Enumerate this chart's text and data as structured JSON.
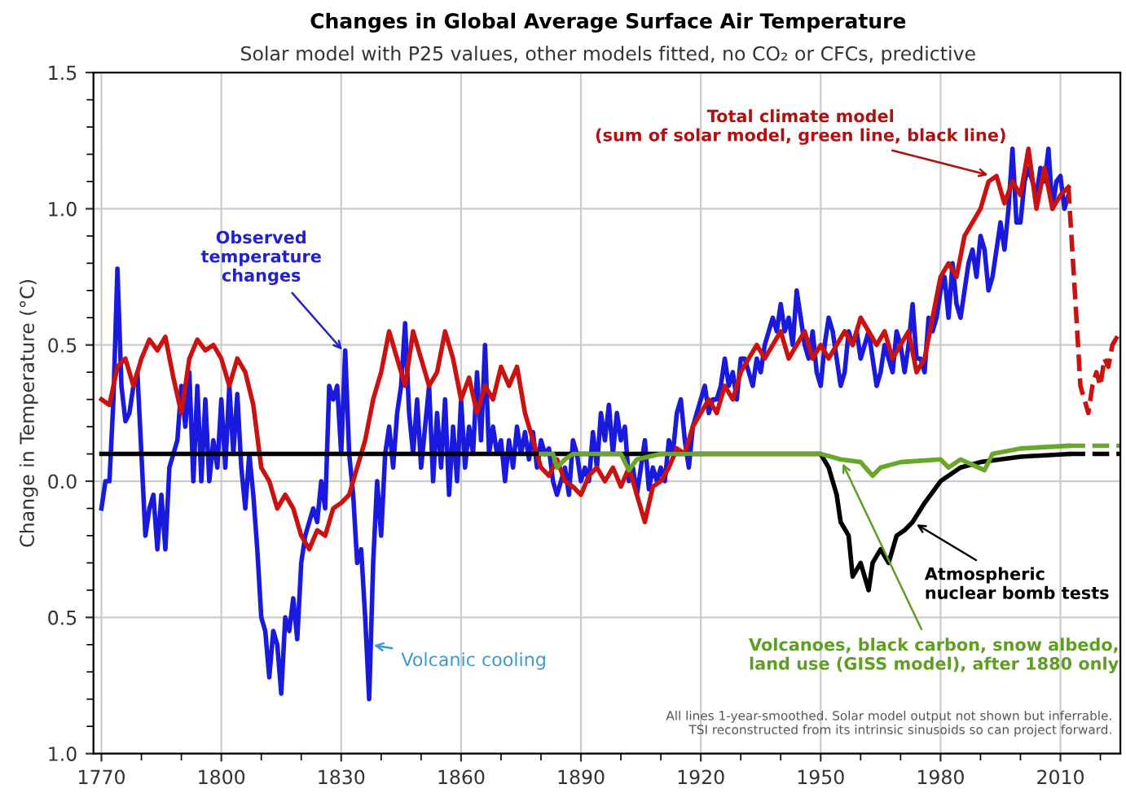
{
  "chart_data": {
    "type": "line",
    "title": "Changes in Global Average Surface Air Temperature",
    "subtitle": "Solar model with P25 values, other models fitted, no CO₂ or CFCs, predictive",
    "ylabel": "Change in Temperature (°C)",
    "xlim": [
      1768,
      2025
    ],
    "ylim": [
      -1.0,
      1.5
    ],
    "xticks": [
      1770,
      {
        "value": 1780,
        "label": null
      },
      {
        "value": 1790,
        "label": null
      },
      1800,
      {
        "value": 1810,
        "label": null
      },
      {
        "value": 1820,
        "label": null
      },
      1830,
      {
        "value": 1840,
        "label": null
      },
      {
        "value": 1850,
        "label": null
      },
      1860,
      {
        "value": 1870,
        "label": null
      },
      {
        "value": 1880,
        "label": null
      },
      1890,
      {
        "value": 1900,
        "label": null
      },
      {
        "value": 1910,
        "label": null
      },
      1920,
      {
        "value": 1930,
        "label": null
      },
      {
        "value": 1940,
        "label": null
      },
      1950,
      {
        "value": 1960,
        "label": null
      },
      {
        "value": 1970,
        "label": null
      },
      1980,
      {
        "value": 1990,
        "label": null
      },
      {
        "value": 2000,
        "label": null
      },
      2010,
      {
        "value": 2020,
        "label": null
      }
    ],
    "yticks": [
      1.5,
      {
        "value": 1.0,
        "label": "1.0"
      },
      0.5,
      {
        "value": 0.0,
        "label": "0.0"
      },
      {
        "value": -0.5,
        "label": "0.5"
      },
      {
        "value": -1.0,
        "label": "1.0"
      },
      {
        "value": 1.4,
        "label": null
      },
      {
        "value": 1.3,
        "label": null
      },
      {
        "value": 1.2,
        "label": null
      },
      {
        "value": 1.1,
        "label": null
      },
      {
        "value": 0.9,
        "label": null
      },
      {
        "value": 0.8,
        "label": null
      },
      {
        "value": 0.7,
        "label": null
      },
      {
        "value": 0.6,
        "label": null
      },
      {
        "value": 0.4,
        "label": null
      },
      {
        "value": 0.3,
        "label": null
      },
      {
        "value": 0.2,
        "label": null
      },
      {
        "value": 0.1,
        "label": null
      },
      {
        "value": -0.1,
        "label": null
      },
      {
        "value": -0.2,
        "label": null
      },
      {
        "value": -0.3,
        "label": null
      },
      {
        "value": -0.4,
        "label": null
      },
      {
        "value": -0.6,
        "label": null
      },
      {
        "value": -0.7,
        "label": null
      },
      {
        "value": -0.8,
        "label": null
      },
      {
        "value": -0.9,
        "label": null
      }
    ],
    "grid": true,
    "marker": "none",
    "series": [
      {
        "color": "#1a1adf",
        "line_style": "solid",
        "x": [
          1770,
          1771,
          1772,
          1773,
          1774,
          1775,
          1776,
          1777,
          1778,
          1779,
          1780,
          1781,
          1782,
          1783,
          1784,
          1785,
          1786,
          1787,
          1788,
          1789,
          1790,
          1791,
          1792,
          1793,
          1794,
          1795,
          1796,
          1797,
          1798,
          1799,
          1800,
          1801,
          1802,
          1803,
          1804,
          1805,
          1806,
          1807,
          1808,
          1809,
          1810,
          1811,
          1812,
          1813,
          1814,
          1815,
          1816,
          1817,
          1818,
          1819,
          1820,
          1821,
          1822,
          1823,
          1824,
          1825,
          1826,
          1827,
          1828,
          1829,
          1830,
          1831,
          1832,
          1833,
          1834,
          1835,
          1836,
          1837,
          1838,
          1839,
          1840,
          1841,
          1842,
          1843,
          1844,
          1845,
          1846,
          1847,
          1848,
          1849,
          1850,
          1851,
          1852,
          1853,
          1854,
          1855,
          1856,
          1857,
          1858,
          1859,
          1860,
          1861,
          1862,
          1863,
          1864,
          1865,
          1866,
          1867,
          1868,
          1869,
          1870,
          1871,
          1872,
          1873,
          1874,
          1875,
          1876,
          1877,
          1878,
          1879,
          1880,
          1881,
          1882,
          1883,
          1884,
          1885,
          1886,
          1887,
          1888,
          1889,
          1890,
          1891,
          1892,
          1893,
          1894,
          1895,
          1896,
          1897,
          1898,
          1899,
          1900,
          1901,
          1902,
          1903,
          1904,
          1905,
          1906,
          1907,
          1908,
          1909,
          1910,
          1911,
          1912,
          1913,
          1914,
          1915,
          1916,
          1917,
          1918,
          1919,
          1920,
          1921,
          1922,
          1923,
          1924,
          1925,
          1926,
          1927,
          1928,
          1929,
          1930,
          1931,
          1932,
          1933,
          1934,
          1935,
          1936,
          1937,
          1938,
          1939,
          1940,
          1941,
          1942,
          1943,
          1944,
          1945,
          1946,
          1947,
          1948,
          1949,
          1950,
          1951,
          1952,
          1953,
          1954,
          1955,
          1956,
          1957,
          1958,
          1959,
          1960,
          1961,
          1962,
          1963,
          1964,
          1965,
          1966,
          1967,
          1968,
          1969,
          1970,
          1971,
          1972,
          1973,
          1974,
          1975,
          1976,
          1977,
          1978,
          1979,
          1980,
          1981,
          1982,
          1983,
          1984,
          1985,
          1986,
          1987,
          1988,
          1989,
          1990,
          1991,
          1992,
          1993,
          1994,
          1995,
          1996,
          1997,
          1998,
          1999,
          2000,
          2001,
          2002,
          2003,
          2004,
          2005,
          2006,
          2007,
          2008,
          2009,
          2010,
          2011,
          2012
        ],
        "values": [
          -0.1,
          0.0,
          0.0,
          0.3,
          0.78,
          0.35,
          0.22,
          0.25,
          0.35,
          0.4,
          0.1,
          -0.2,
          -0.1,
          -0.05,
          -0.25,
          -0.05,
          -0.25,
          0.05,
          0.1,
          0.15,
          0.35,
          0.2,
          0.4,
          0.0,
          0.35,
          0.0,
          0.3,
          0.0,
          0.15,
          0.05,
          0.3,
          0.05,
          0.35,
          0.1,
          0.32,
          0.05,
          -0.1,
          0.1,
          -0.05,
          -0.25,
          -0.5,
          -0.55,
          -0.72,
          -0.55,
          -0.6,
          -0.78,
          -0.5,
          -0.55,
          -0.43,
          -0.58,
          -0.3,
          -0.2,
          -0.15,
          -0.1,
          -0.15,
          0.0,
          -0.1,
          0.35,
          0.3,
          0.35,
          0.1,
          0.48,
          0.1,
          -0.05,
          -0.3,
          -0.25,
          -0.5,
          -0.8,
          -0.3,
          0.0,
          -0.2,
          0.1,
          0.2,
          0.05,
          0.25,
          0.35,
          0.58,
          0.25,
          0.1,
          0.3,
          0.05,
          0.2,
          0.35,
          0.0,
          0.25,
          0.05,
          0.3,
          -0.05,
          0.2,
          0.0,
          0.3,
          0.05,
          0.2,
          0.1,
          0.4,
          0.15,
          0.5,
          0.1,
          0.2,
          0.1,
          0.15,
          0.0,
          0.15,
          0.05,
          0.2,
          0.1,
          0.18,
          0.08,
          0.18,
          0.05,
          0.15,
          0.1,
          0.12,
          0.0,
          -0.05,
          0.0,
          0.05,
          -0.05,
          0.15,
          0.1,
          0.0,
          0.05,
          0.0,
          0.18,
          0.05,
          0.25,
          0.15,
          0.28,
          0.1,
          0.25,
          0.15,
          0.2,
          0.0,
          0.05,
          -0.05,
          0.05,
          0.15,
          -0.03,
          0.05,
          0.0,
          0.05,
          0.0,
          0.15,
          0.1,
          0.25,
          0.3,
          0.15,
          0.05,
          0.2,
          0.25,
          0.3,
          0.35,
          0.25,
          0.3,
          0.3,
          0.35,
          0.45,
          0.35,
          0.4,
          0.3,
          0.45,
          0.45,
          0.4,
          0.35,
          0.45,
          0.4,
          0.5,
          0.55,
          0.6,
          0.55,
          0.65,
          0.55,
          0.6,
          0.5,
          0.7,
          0.6,
          0.5,
          0.45,
          0.55,
          0.4,
          0.35,
          0.5,
          0.6,
          0.55,
          0.45,
          0.35,
          0.4,
          0.55,
          0.5,
          0.55,
          0.45,
          0.5,
          0.55,
          0.45,
          0.35,
          0.4,
          0.5,
          0.45,
          0.4,
          0.55,
          0.5,
          0.4,
          0.5,
          0.65,
          0.45,
          0.45,
          0.4,
          0.6,
          0.55,
          0.6,
          0.7,
          0.75,
          0.6,
          0.8,
          0.65,
          0.6,
          0.7,
          0.8,
          0.85,
          0.75,
          0.9,
          0.85,
          0.7,
          0.75,
          0.85,
          0.95,
          0.85,
          1.0,
          1.22,
          0.95,
          0.95,
          1.1,
          1.15,
          1.1,
          1.05,
          1.15,
          1.1,
          1.22,
          1.0,
          1.1,
          1.12,
          1.0,
          1.05
        ]
      },
      {
        "color": "#cc1111",
        "line_style": "solid",
        "x": [
          1770,
          1772,
          1774,
          1776,
          1778,
          1780,
          1782,
          1784,
          1786,
          1788,
          1790,
          1792,
          1794,
          1796,
          1798,
          1800,
          1802,
          1804,
          1806,
          1808,
          1810,
          1812,
          1814,
          1816,
          1818,
          1820,
          1822,
          1824,
          1826,
          1828,
          1830,
          1832,
          1834,
          1836,
          1838,
          1840,
          1842,
          1844,
          1846,
          1848,
          1850,
          1852,
          1854,
          1856,
          1858,
          1860,
          1862,
          1864,
          1866,
          1868,
          1870,
          1872,
          1874,
          1876,
          1878,
          1880,
          1882,
          1884,
          1886,
          1888,
          1890,
          1892,
          1894,
          1896,
          1898,
          1900,
          1902,
          1904,
          1906,
          1908,
          1910,
          1912,
          1914,
          1916,
          1918,
          1920,
          1922,
          1924,
          1926,
          1928,
          1930,
          1932,
          1934,
          1936,
          1938,
          1940,
          1942,
          1944,
          1946,
          1948,
          1950,
          1952,
          1954,
          1956,
          1958,
          1960,
          1962,
          1964,
          1966,
          1968,
          1970,
          1972,
          1974,
          1976,
          1978,
          1980,
          1982,
          1984,
          1986,
          1988,
          1990,
          1992,
          1994,
          1996,
          1998,
          2000,
          2002,
          2004,
          2006,
          2008,
          2010,
          2012
        ],
        "values": [
          0.3,
          0.28,
          0.42,
          0.45,
          0.35,
          0.45,
          0.52,
          0.48,
          0.53,
          0.38,
          0.25,
          0.45,
          0.52,
          0.48,
          0.5,
          0.45,
          0.35,
          0.45,
          0.4,
          0.28,
          0.05,
          0.0,
          -0.1,
          -0.05,
          -0.1,
          -0.2,
          -0.25,
          -0.18,
          -0.2,
          -0.1,
          -0.08,
          -0.05,
          0.05,
          0.15,
          0.3,
          0.4,
          0.55,
          0.45,
          0.35,
          0.55,
          0.45,
          0.35,
          0.4,
          0.55,
          0.45,
          0.3,
          0.38,
          0.25,
          0.35,
          0.3,
          0.42,
          0.35,
          0.42,
          0.25,
          0.15,
          0.05,
          0.02,
          0.08,
          0.0,
          -0.02,
          -0.05,
          0.02,
          0.05,
          0.0,
          0.05,
          -0.02,
          0.05,
          -0.05,
          -0.15,
          -0.02,
          0.0,
          0.05,
          0.12,
          0.1,
          0.2,
          0.25,
          0.3,
          0.25,
          0.35,
          0.3,
          0.4,
          0.45,
          0.5,
          0.45,
          0.5,
          0.55,
          0.45,
          0.5,
          0.55,
          0.45,
          0.5,
          0.45,
          0.5,
          0.55,
          0.5,
          0.6,
          0.55,
          0.5,
          0.55,
          0.45,
          0.5,
          0.55,
          0.4,
          0.45,
          0.6,
          0.75,
          0.8,
          0.75,
          0.9,
          0.95,
          1.0,
          1.1,
          1.12,
          1.02,
          1.1,
          1.05,
          1.22,
          1.0,
          1.15,
          1.0,
          1.05,
          1.08
        ]
      },
      {
        "color": "#cc1111",
        "line_style": "dashed",
        "x": [
          2012,
          2014,
          2015,
          2016,
          2017,
          2018,
          2019,
          2020,
          2021,
          2022,
          2023,
          2025
        ],
        "values": [
          1.08,
          0.6,
          0.35,
          0.3,
          0.25,
          0.35,
          0.4,
          0.35,
          0.45,
          0.42,
          0.5,
          0.55
        ]
      },
      {
        "color": "#000000",
        "line_style": "solid",
        "x": [
          1770,
          1950,
          1952,
          1954,
          1955,
          1957,
          1958,
          1960,
          1962,
          1963,
          1965,
          1967,
          1969,
          1971,
          1973,
          1976,
          1980,
          1985,
          1990,
          2000,
          2012
        ],
        "values": [
          0.1,
          0.1,
          0.05,
          -0.05,
          -0.15,
          -0.2,
          -0.35,
          -0.3,
          -0.4,
          -0.3,
          -0.25,
          -0.3,
          -0.2,
          -0.18,
          -0.15,
          -0.08,
          0.0,
          0.05,
          0.07,
          0.09,
          0.1
        ]
      },
      {
        "color": "#000000",
        "line_style": "dashed",
        "x": [
          2012,
          2025
        ],
        "values": [
          0.1,
          0.1
        ]
      },
      {
        "color": "#6aa629",
        "line_style": "solid",
        "x": [
          1880,
          1883,
          1884,
          1886,
          1888,
          1900,
          1902,
          1904,
          1910,
          1950,
          1955,
          1960,
          1963,
          1965,
          1970,
          1980,
          1982,
          1985,
          1991,
          1993,
          2000,
          2012
        ],
        "values": [
          0.1,
          0.1,
          0.05,
          0.08,
          0.1,
          0.1,
          0.04,
          0.08,
          0.1,
          0.1,
          0.08,
          0.07,
          0.02,
          0.05,
          0.07,
          0.08,
          0.05,
          0.08,
          0.04,
          0.1,
          0.12,
          0.13
        ]
      },
      {
        "color": "#6aa629",
        "line_style": "dashed",
        "x": [
          2012,
          2025
        ],
        "values": [
          0.13,
          0.13
        ]
      }
    ],
    "annotations": [
      {
        "text": "Observed\ntemperature\nchanges",
        "x": 1831,
        "y": 0.47
      },
      {
        "text": "Total climate model\n(sum of solar model, green line, black line)",
        "x": 1993,
        "y": 1.12
      },
      {
        "text": "Volcanic cooling",
        "x": 1837,
        "y": -0.6
      },
      {
        "text": "Atmospheric\nnuclear bomb tests",
        "x": 1973,
        "y": -0.15
      },
      {
        "text": "Volcanoes, black carbon, snow albedo,\nland use (GISS model), after 1880 only",
        "x": 1955,
        "y": 0.08
      },
      "All lines 1-year-smoothed. Solar model output not shown but inferrable.\nTSI reconstructed from its intrinsic sinusoids so can project forward."
    ]
  }
}
